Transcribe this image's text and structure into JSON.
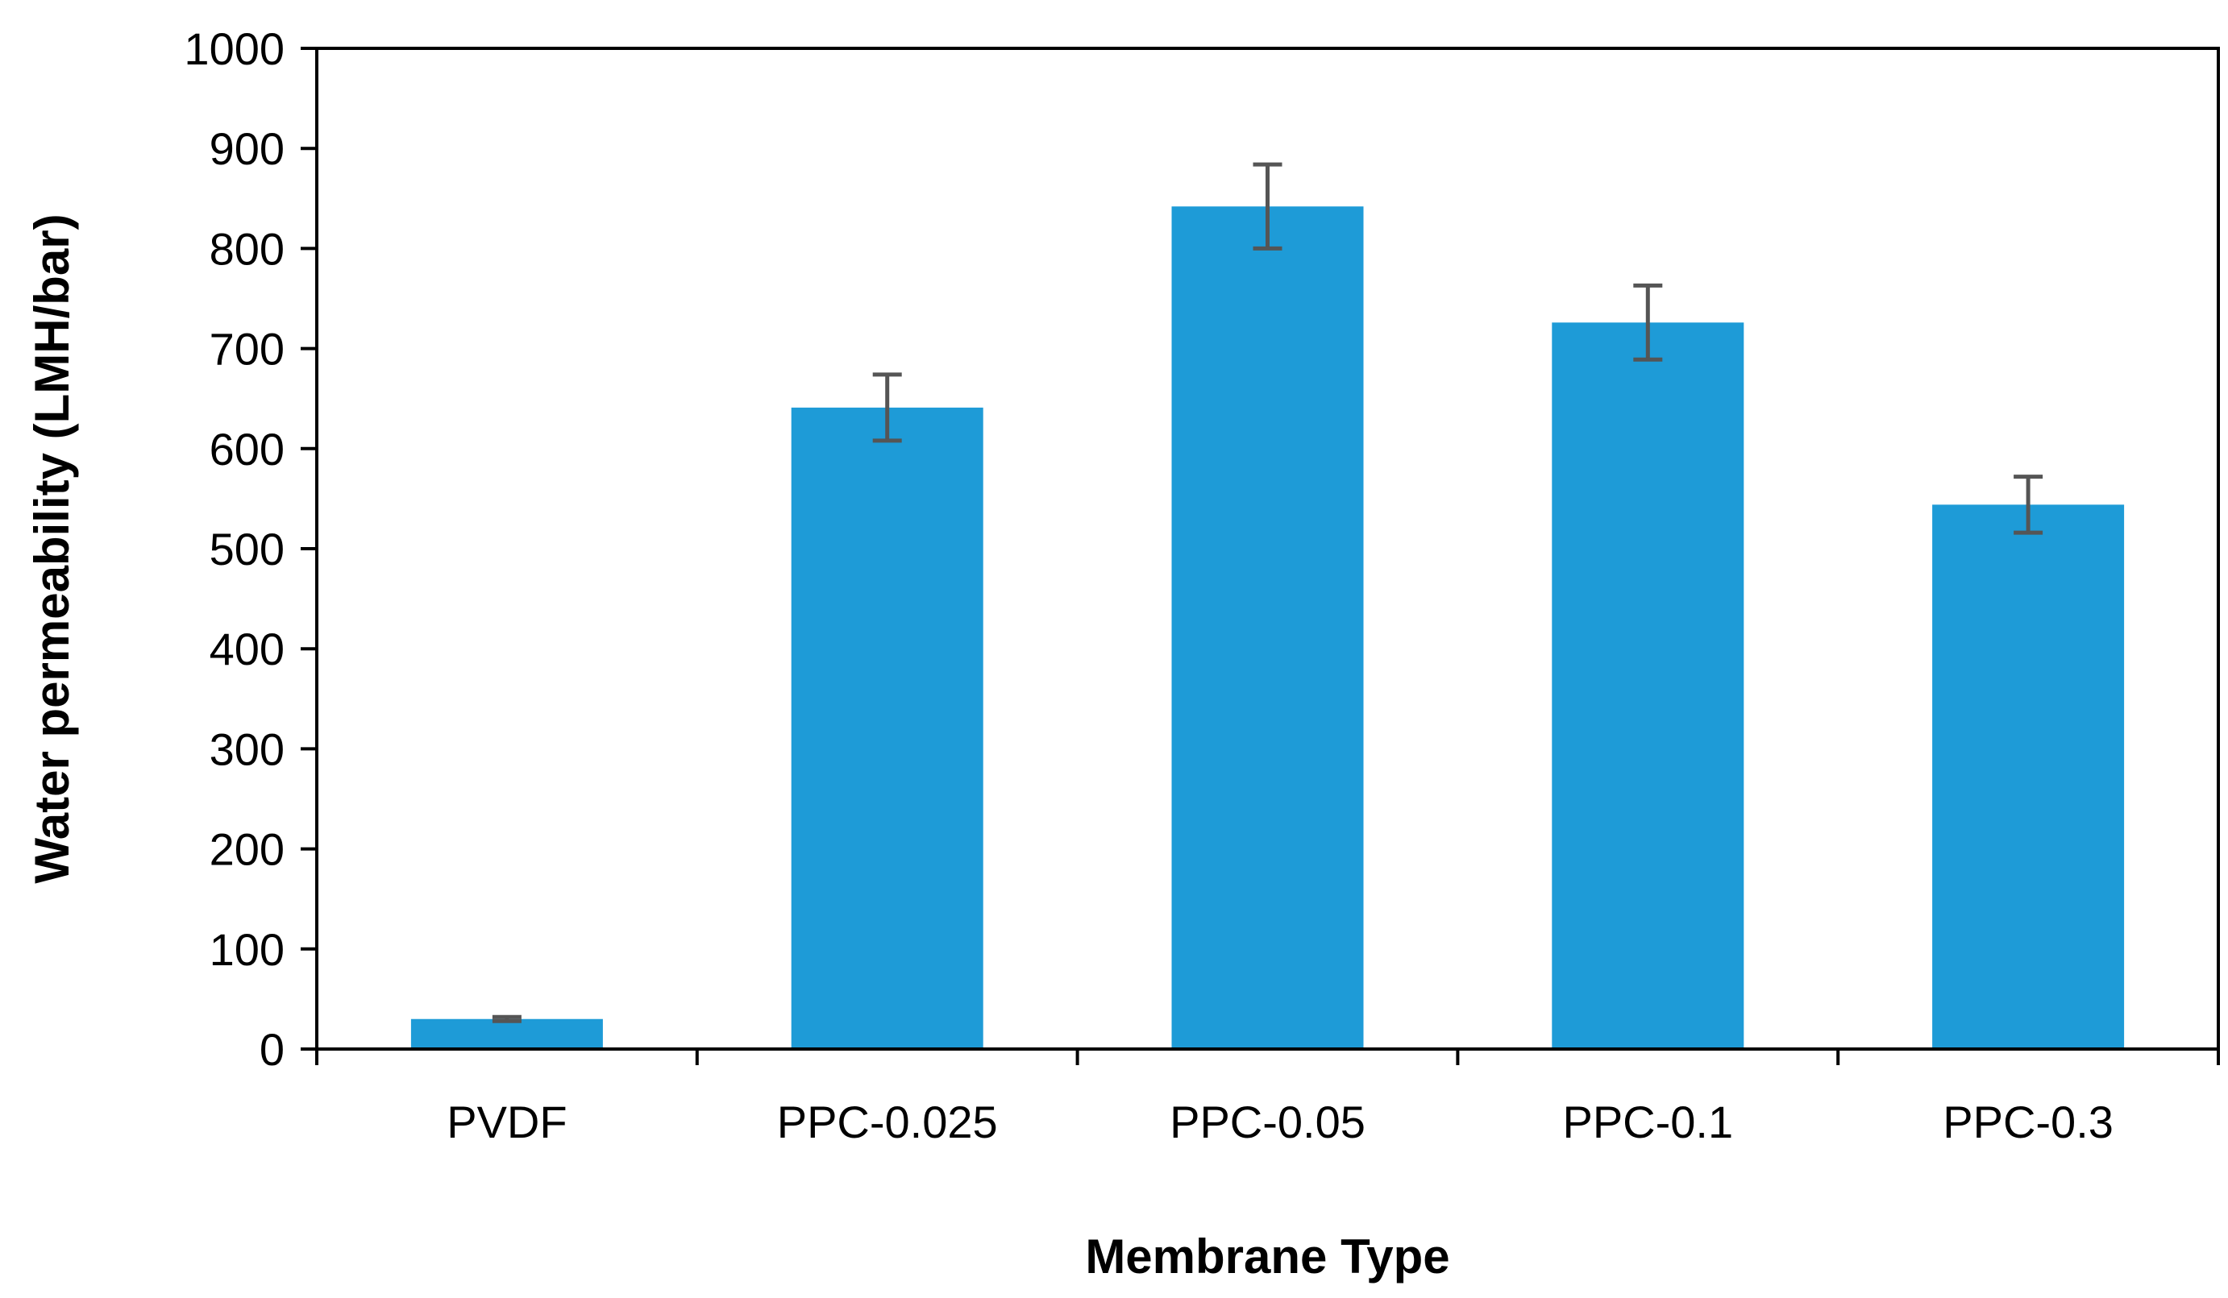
{
  "chart_data": {
    "type": "bar",
    "title": "",
    "xlabel": "Membrane Type",
    "ylabel": "Water permeability (LMH/bar)",
    "categories": [
      "PVDF",
      "PPC-0.025",
      "PPC-0.05",
      "PPC-0.1",
      "PPC-0.3"
    ],
    "values": [
      30,
      641,
      842,
      726,
      544
    ],
    "errors": [
      2,
      33,
      42,
      37,
      28
    ],
    "ylim": [
      0,
      1000
    ],
    "yticks": [
      "0",
      "100",
      "200",
      "300",
      "400",
      "500",
      "600",
      "700",
      "800",
      "900",
      "1000"
    ],
    "grid": false,
    "legend": "none",
    "colors": {
      "bar": "#1e9bd7",
      "error_bar": "#555555",
      "axis": "#000000"
    }
  }
}
